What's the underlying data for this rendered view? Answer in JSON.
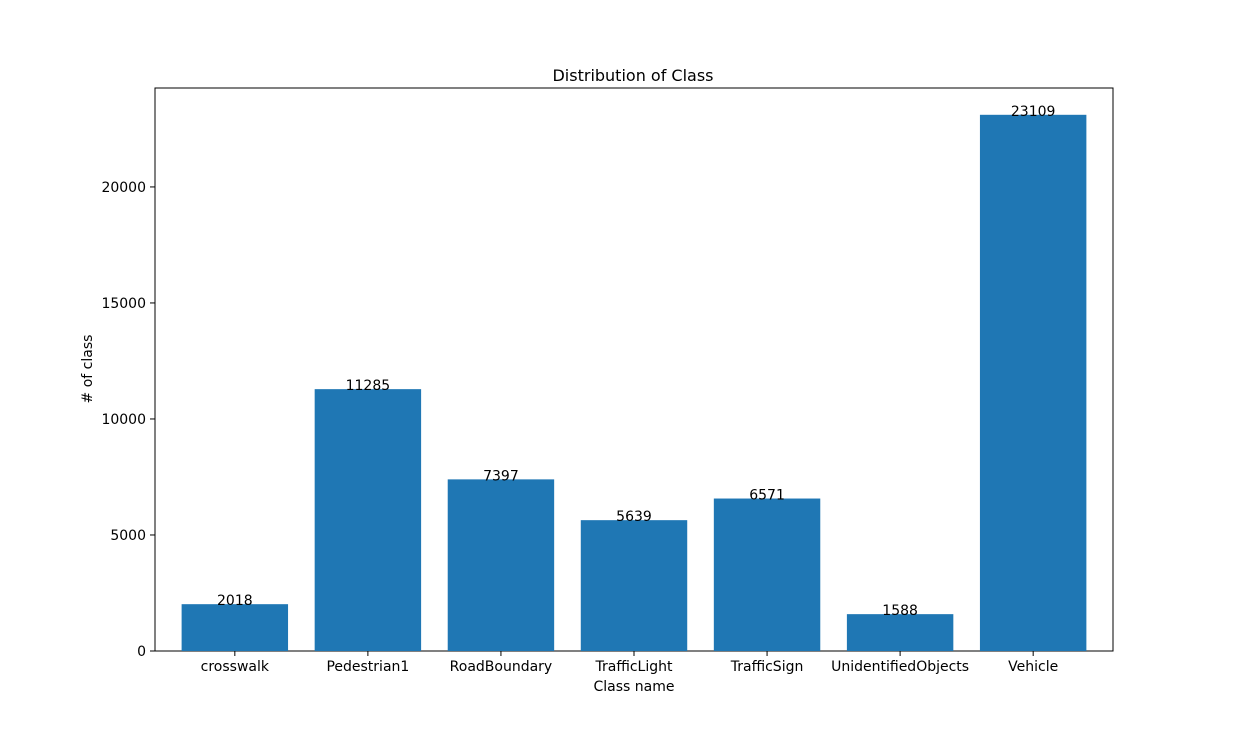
{
  "chart_data": {
    "type": "bar",
    "title": "Distribution of Class",
    "xlabel": "Class name",
    "ylabel": "# of class",
    "categories": [
      "crosswalk",
      "Pedestrian1",
      "RoadBoundary",
      "TrafficLight",
      "TrafficSign",
      "UnidentifiedObjects",
      "Vehicle"
    ],
    "values": [
      2018,
      11285,
      7397,
      5639,
      6571,
      1588,
      23109
    ],
    "ylim": [
      0,
      24264
    ],
    "yticks": [
      0,
      5000,
      10000,
      15000,
      20000
    ],
    "bar_color": "#1f77b4",
    "grid": false,
    "legend": false,
    "data_labels": true
  }
}
